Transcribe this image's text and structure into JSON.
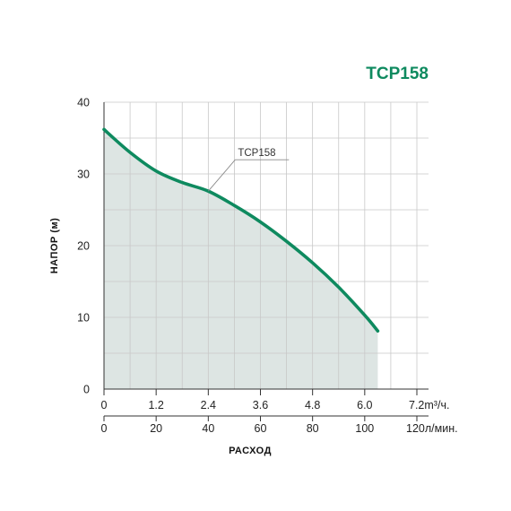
{
  "colors": {
    "accent": "#0e8a5f",
    "area": "#dde5e3",
    "grid": "#c8c8c8",
    "axis": "#333333"
  },
  "chart_data": {
    "type": "area",
    "title": "TCP158",
    "ylabel": "НАПОР (м)",
    "xlabel": "РАСХОД",
    "ylim": [
      0,
      40
    ],
    "y_ticks": [
      "0",
      "10",
      "20",
      "30",
      "40"
    ],
    "x_primary": {
      "unit": "m³/ч.",
      "ticks": [
        "0",
        "1.2",
        "2.4",
        "3.6",
        "4.8",
        "6.0",
        "7.2"
      ],
      "range": [
        0,
        7.2
      ]
    },
    "x_secondary": {
      "unit": "л/мин.",
      "ticks": [
        "0",
        "20",
        "40",
        "60",
        "80",
        "100",
        "120"
      ],
      "range": [
        0,
        120
      ]
    },
    "grid": true,
    "series": [
      {
        "name": "TCP158",
        "x": [
          0,
          0.6,
          1.2,
          1.8,
          2.4,
          3.0,
          3.6,
          4.2,
          4.8,
          5.4,
          6.0,
          6.3
        ],
        "y": [
          36.2,
          33.0,
          30.4,
          28.8,
          27.6,
          25.6,
          23.3,
          20.6,
          17.6,
          14.2,
          10.3,
          8.1
        ]
      }
    ]
  }
}
